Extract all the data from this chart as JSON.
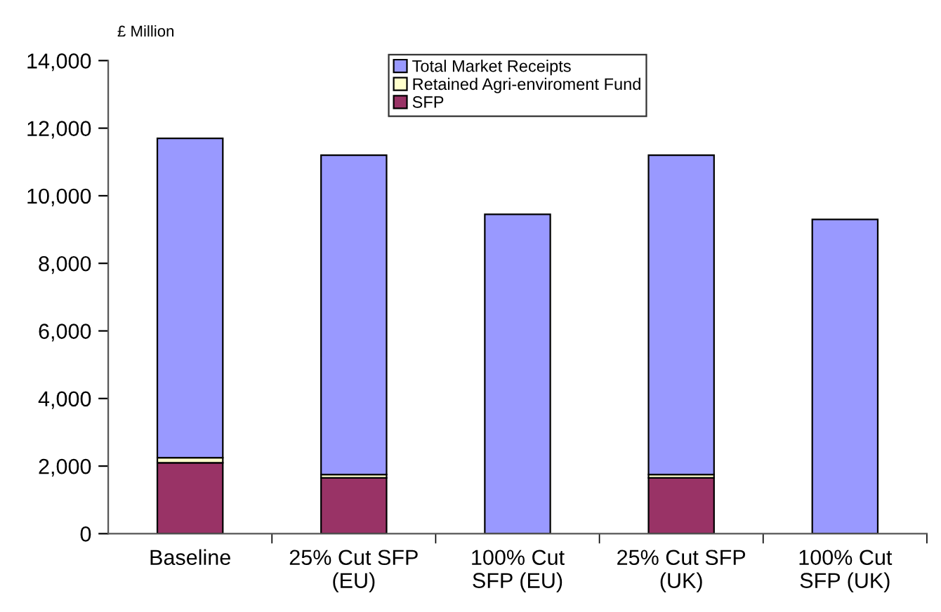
{
  "chart_data": {
    "type": "bar",
    "stacked": true,
    "ylabel": "£ Million",
    "categories": [
      "Baseline",
      "25% Cut SFP\n(EU)",
      "100% Cut\nSFP (EU)",
      "25% Cut SFP\n(UK)",
      "100% Cut\nSFP (UK)"
    ],
    "series": [
      {
        "name": "SFP",
        "color": "#993366",
        "values": [
          2100,
          1650,
          0,
          1650,
          0
        ]
      },
      {
        "name": "Retained Agri-enviroment Fund",
        "color": "#ffffcc",
        "values": [
          150,
          100,
          0,
          100,
          0
        ]
      },
      {
        "name": "Total Market Receipts",
        "color": "#9999ff",
        "values": [
          9450,
          9450,
          9450,
          9450,
          9300
        ]
      }
    ],
    "ylim": [
      0,
      14000
    ],
    "yticks": [
      {
        "value": 0,
        "label": "0"
      },
      {
        "value": 2000,
        "label": "2,000"
      },
      {
        "value": 4000,
        "label": "4,000"
      },
      {
        "value": 6000,
        "label": "6,000"
      },
      {
        "value": 8000,
        "label": "8,000"
      },
      {
        "value": 10000,
        "label": "10,000"
      },
      {
        "value": 12000,
        "label": "12,000"
      },
      {
        "value": 14000,
        "label": "14,000"
      }
    ],
    "grid": false,
    "legend": "top"
  }
}
